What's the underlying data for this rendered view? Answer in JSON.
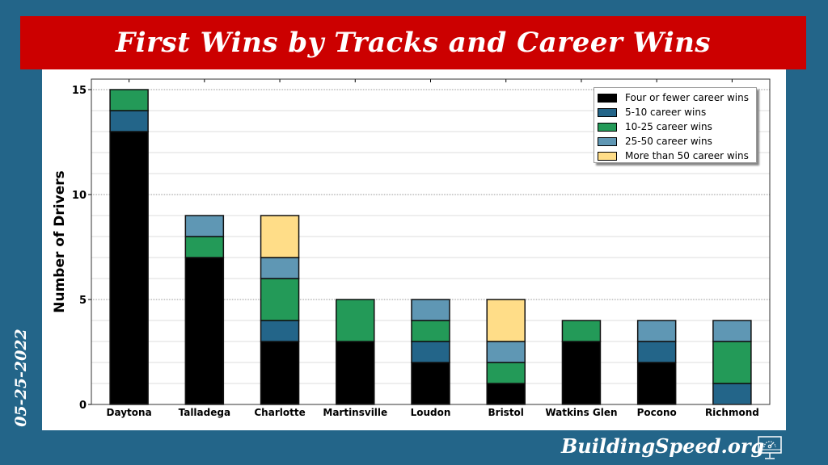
{
  "title": "First Wins by Tracks and Career Wins",
  "date": "05-25-2022",
  "brand": "BuildingSpeed.org",
  "brand_icon": "monitor-speedometer-icon",
  "colors": {
    "background": "#236589",
    "banner": "#cc0000"
  },
  "chart_data": {
    "type": "bar",
    "stacked": true,
    "title": "",
    "xlabel": "",
    "ylabel": "Number of Drivers",
    "ylim": [
      0,
      15.5
    ],
    "yticks": [
      0,
      5,
      10,
      15
    ],
    "grid": true,
    "legend_placement": "top-right",
    "categories": [
      "Daytona",
      "Talladega",
      "Charlotte",
      "Martinsville",
      "Loudon",
      "Bristol",
      "Watkins Glen",
      "Pocono",
      "Richmond"
    ],
    "series": [
      {
        "name": "Four or fewer career wins",
        "color": "#000000",
        "values": [
          13,
          7,
          3,
          3,
          2,
          1,
          3,
          2,
          0
        ]
      },
      {
        "name": "5-10 career wins",
        "color": "#236589",
        "values": [
          1,
          0,
          1,
          0,
          1,
          0,
          0,
          1,
          1
        ]
      },
      {
        "name": "10-25 career wins",
        "color": "#239a58",
        "values": [
          1,
          1,
          2,
          2,
          1,
          1,
          1,
          0,
          2
        ]
      },
      {
        "name": "25-50 career wins",
        "color": "#5f97b4",
        "values": [
          0,
          1,
          1,
          0,
          1,
          1,
          0,
          1,
          1
        ]
      },
      {
        "name": "More than 50 career wins",
        "color": "#ffdd88",
        "values": [
          0,
          0,
          2,
          0,
          0,
          2,
          0,
          0,
          0
        ]
      }
    ]
  }
}
